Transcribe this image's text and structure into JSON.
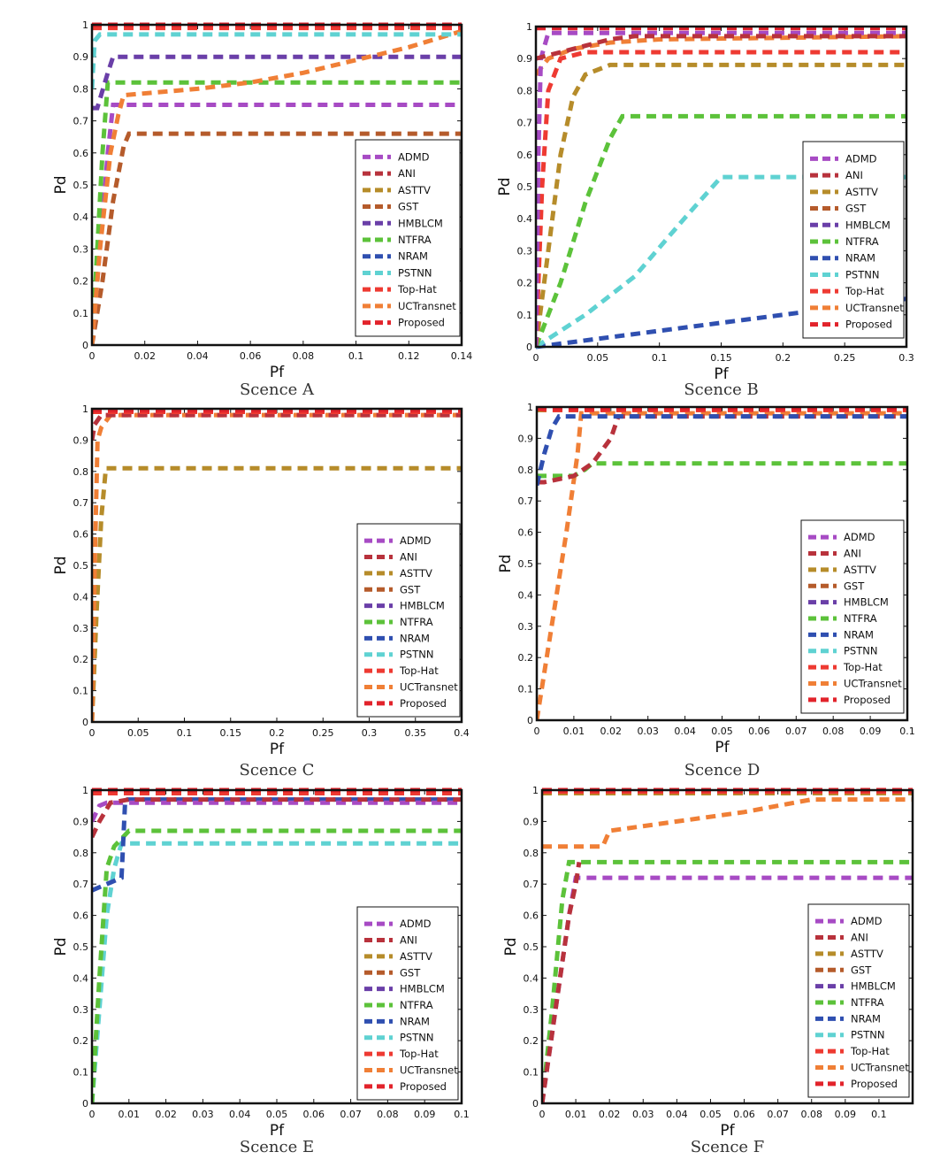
{
  "chart_data": [
    {
      "type": "line",
      "caption": "Scence A",
      "xlabel": "Pf",
      "ylabel": "Pd",
      "xlim": [
        0,
        0.14
      ],
      "ylim": [
        0,
        1
      ],
      "xticks": [
        "0",
        "0.02",
        "0.04",
        "0.06",
        "0.08",
        "0.1",
        "0.12",
        "0.14"
      ],
      "yticks": [
        "0",
        "0.1",
        "0.2",
        "0.3",
        "0.4",
        "0.5",
        "0.6",
        "0.7",
        "0.8",
        "0.9",
        "1"
      ],
      "legend": [
        "ADMD",
        "ANI",
        "ASTTV",
        "GST",
        "HMBLCM",
        "NTFRA",
        "NRAM",
        "PSTNN",
        "Top-Hat",
        "UCTransnet",
        "Proposed"
      ],
      "series": [
        {
          "name": "GST",
          "x": [
            0,
            0.004,
            0.008,
            0.012,
            0.014,
            0.14
          ],
          "y": [
            0,
            0.2,
            0.45,
            0.62,
            0.66,
            0.66
          ]
        },
        {
          "name": "ADMD",
          "x": [
            0,
            0.003,
            0.006,
            0.008,
            0.14
          ],
          "y": [
            0,
            0.3,
            0.6,
            0.75,
            0.75
          ]
        },
        {
          "name": "NTFRA",
          "x": [
            0,
            0.002,
            0.004,
            0.006,
            0.14
          ],
          "y": [
            0,
            0.3,
            0.6,
            0.82,
            0.82
          ]
        },
        {
          "name": "HMBLCM",
          "x": [
            0,
            0.002,
            0.006,
            0.008,
            0.14
          ],
          "y": [
            0.74,
            0.74,
            0.85,
            0.9,
            0.9
          ]
        },
        {
          "name": "UCTransnet",
          "x": [
            0,
            0.003,
            0.007,
            0.01,
            0.012,
            0.04,
            0.06,
            0.08,
            0.1,
            0.12,
            0.14
          ],
          "y": [
            0,
            0.3,
            0.6,
            0.72,
            0.78,
            0.8,
            0.82,
            0.85,
            0.89,
            0.93,
            0.98
          ]
        },
        {
          "name": "PSTNN",
          "x": [
            0,
            0.001,
            0.003,
            0.14
          ],
          "y": [
            0.8,
            0.95,
            0.97,
            0.97
          ]
        },
        {
          "name": "Top-Hat",
          "x": [
            0,
            0.002,
            0.14
          ],
          "y": [
            0.99,
            0.99,
            0.99
          ]
        },
        {
          "name": "Proposed",
          "x": [
            0,
            0.001,
            0.14
          ],
          "y": [
            1,
            1,
            1
          ]
        }
      ]
    },
    {
      "type": "line",
      "caption": "Scence B",
      "xlabel": "Pf",
      "ylabel": "Pd",
      "xlim": [
        0,
        0.3
      ],
      "ylim": [
        0,
        1
      ],
      "xticks": [
        "0",
        "0.05",
        "0.1",
        "0.15",
        "0.2",
        "0.25",
        "0.3"
      ],
      "yticks": [
        "0",
        "0.1",
        "0.2",
        "0.3",
        "0.4",
        "0.5",
        "0.6",
        "0.7",
        "0.8",
        "0.9",
        "1"
      ],
      "legend": [
        "ADMD",
        "ANI",
        "ASTTV",
        "GST",
        "HMBLCM",
        "NTFRA",
        "NRAM",
        "PSTNN",
        "Top-Hat",
        "UCTransnet",
        "Proposed"
      ],
      "series": [
        {
          "name": "NRAM",
          "x": [
            0,
            0.3
          ],
          "y": [
            0,
            0.15
          ]
        },
        {
          "name": "PSTNN",
          "x": [
            0,
            0.04,
            0.08,
            0.12,
            0.15,
            0.3
          ],
          "y": [
            0,
            0.1,
            0.22,
            0.4,
            0.53,
            0.53
          ]
        },
        {
          "name": "NTFRA",
          "x": [
            0,
            0.02,
            0.04,
            0.06,
            0.07,
            0.3
          ],
          "y": [
            0,
            0.2,
            0.45,
            0.65,
            0.72,
            0.72
          ]
        },
        {
          "name": "ASTTV",
          "x": [
            0,
            0.01,
            0.02,
            0.03,
            0.04,
            0.06,
            0.3
          ],
          "y": [
            0,
            0.3,
            0.6,
            0.78,
            0.85,
            0.88,
            0.88
          ]
        },
        {
          "name": "Top-Hat",
          "x": [
            0,
            0.005,
            0.01,
            0.02,
            0.04,
            0.3
          ],
          "y": [
            0,
            0.5,
            0.8,
            0.9,
            0.92,
            0.92
          ]
        },
        {
          "name": "UCTransnet",
          "x": [
            0,
            0.01,
            0.03,
            0.06,
            0.1,
            0.3
          ],
          "y": [
            0.85,
            0.9,
            0.93,
            0.95,
            0.96,
            0.97
          ]
        },
        {
          "name": "ADMD",
          "x": [
            0,
            0.002,
            0.004,
            0.01,
            0.3
          ],
          "y": [
            0,
            0.6,
            0.9,
            0.98,
            0.98
          ]
        },
        {
          "name": "ANI",
          "x": [
            0,
            0.02,
            0.04,
            0.06,
            0.08,
            0.1,
            0.3
          ],
          "y": [
            0.9,
            0.92,
            0.94,
            0.96,
            0.97,
            0.97,
            0.97
          ]
        },
        {
          "name": "Proposed",
          "x": [
            0,
            0.001,
            0.3
          ],
          "y": [
            0.995,
            0.995,
            0.995
          ]
        }
      ]
    },
    {
      "type": "line",
      "caption": "Scence C",
      "xlabel": "Pf",
      "ylabel": "Pd",
      "xlim": [
        0,
        0.4
      ],
      "ylim": [
        0,
        1
      ],
      "xticks": [
        "0",
        "0.05",
        "0.1",
        "0.15",
        "0.2",
        "0.25",
        "0.3",
        "0.35",
        "0.4"
      ],
      "yticks": [
        "0",
        "0.1",
        "0.2",
        "0.3",
        "0.4",
        "0.5",
        "0.6",
        "0.7",
        "0.8",
        "0.9",
        "1"
      ],
      "legend": [
        "ADMD",
        "ANI",
        "ASTTV",
        "GST",
        "HMBLCM",
        "NTFRA",
        "NRAM",
        "PSTNN",
        "Top-Hat",
        "UCTransnet",
        "Proposed"
      ],
      "series": [
        {
          "name": "ASTTV",
          "x": [
            0,
            0.005,
            0.01,
            0.015,
            0.4
          ],
          "y": [
            0,
            0.35,
            0.65,
            0.81,
            0.81
          ]
        },
        {
          "name": "UCTransnet",
          "x": [
            0,
            0.003,
            0.006,
            0.01,
            0.02,
            0.4
          ],
          "y": [
            0,
            0.5,
            0.9,
            0.94,
            0.98,
            0.98
          ]
        },
        {
          "name": "ANI",
          "x": [
            0,
            0.003,
            0.01,
            0.4
          ],
          "y": [
            0.9,
            0.95,
            0.98,
            0.98
          ]
        },
        {
          "name": "Top-Hat",
          "x": [
            0,
            0.003,
            0.4
          ],
          "y": [
            0.99,
            0.99,
            0.99
          ]
        },
        {
          "name": "Proposed",
          "x": [
            0,
            0.002,
            0.4
          ],
          "y": [
            0.995,
            0.995,
            0.995
          ]
        }
      ]
    },
    {
      "type": "line",
      "caption": "Scence D",
      "xlabel": "Pf",
      "ylabel": "Pd",
      "xlim": [
        0,
        0.1
      ],
      "ylim": [
        0,
        1
      ],
      "xticks": [
        "0",
        "0.01",
        "0.02",
        "0.03",
        "0.04",
        "0.05",
        "0.06",
        "0.07",
        "0.08",
        "0.09",
        "0.1"
      ],
      "yticks": [
        "0",
        "0.1",
        "0.2",
        "0.3",
        "0.4",
        "0.5",
        "0.6",
        "0.7",
        "0.8",
        "0.9",
        "1"
      ],
      "legend": [
        "ADMD",
        "ANI",
        "ASTTV",
        "GST",
        "HMBLCM",
        "NTFRA",
        "NRAM",
        "PSTNN",
        "Top-Hat",
        "UCTransnet",
        "Proposed"
      ],
      "series": [
        {
          "name": "UCTransnet",
          "x": [
            0,
            0.004,
            0.008,
            0.011,
            0.012,
            0.1
          ],
          "y": [
            0,
            0.3,
            0.6,
            0.85,
            0.98,
            0.98
          ]
        },
        {
          "name": "NTFRA",
          "x": [
            0,
            0.01,
            0.013,
            0.015,
            0.1
          ],
          "y": [
            0.78,
            0.78,
            0.8,
            0.82,
            0.82
          ]
        },
        {
          "name": "ANI",
          "x": [
            0,
            0.002,
            0.01,
            0.015,
            0.02,
            0.022,
            0.1
          ],
          "y": [
            0.76,
            0.76,
            0.78,
            0.82,
            0.9,
            0.97,
            0.97
          ]
        },
        {
          "name": "NRAM",
          "x": [
            0,
            0.002,
            0.004,
            0.006,
            0.1
          ],
          "y": [
            0.75,
            0.85,
            0.93,
            0.97,
            0.97
          ]
        },
        {
          "name": "ASTTV",
          "x": [
            0,
            0.1
          ],
          "y": [
            0.99,
            0.99
          ]
        },
        {
          "name": "Top-Hat",
          "x": [
            0,
            0.003,
            0.1
          ],
          "y": [
            0.995,
            0.99,
            0.99
          ]
        },
        {
          "name": "Proposed",
          "x": [
            0,
            0.001,
            0.1
          ],
          "y": [
            0.995,
            0.995,
            0.995
          ]
        }
      ]
    },
    {
      "type": "line",
      "caption": "Scence E",
      "xlabel": "Pf",
      "ylabel": "Pd",
      "xlim": [
        0,
        0.1
      ],
      "ylim": [
        0,
        1
      ],
      "xticks": [
        "0",
        "0.01",
        "0.02",
        "0.03",
        "0.04",
        "0.05",
        "0.06",
        "0.07",
        "0.08",
        "0.09",
        "0.1"
      ],
      "yticks": [
        "0",
        "0.1",
        "0.2",
        "0.3",
        "0.4",
        "0.5",
        "0.6",
        "0.7",
        "0.8",
        "0.9",
        "1"
      ],
      "legend": [
        "ADMD",
        "ANI",
        "ASTTV",
        "GST",
        "HMBLCM",
        "NTFRA",
        "NRAM",
        "PSTNN",
        "Top-Hat",
        "UCTransnet",
        "Proposed"
      ],
      "series": [
        {
          "name": "PSTNN",
          "x": [
            0,
            0.002,
            0.004,
            0.006,
            0.008,
            0.1
          ],
          "y": [
            0,
            0.3,
            0.6,
            0.75,
            0.83,
            0.83
          ]
        },
        {
          "name": "NTFRA",
          "x": [
            0,
            0.002,
            0.004,
            0.006,
            0.01,
            0.1
          ],
          "y": [
            0,
            0.4,
            0.75,
            0.82,
            0.87,
            0.87
          ]
        },
        {
          "name": "NRAM",
          "x": [
            0,
            0.004,
            0.008,
            0.009,
            0.1
          ],
          "y": [
            0.68,
            0.7,
            0.72,
            0.97,
            0.97
          ]
        },
        {
          "name": "ADMD",
          "x": [
            0,
            0.002,
            0.004,
            0.1
          ],
          "y": [
            0.9,
            0.95,
            0.96,
            0.96
          ]
        },
        {
          "name": "ANI",
          "x": [
            0,
            0.002,
            0.005,
            0.01,
            0.1
          ],
          "y": [
            0.85,
            0.9,
            0.96,
            0.97,
            0.97
          ]
        },
        {
          "name": "Top-Hat",
          "x": [
            0,
            0.1
          ],
          "y": [
            0.99,
            0.99
          ]
        },
        {
          "name": "Proposed",
          "x": [
            0,
            0.1
          ],
          "y": [
            1,
            1
          ]
        }
      ]
    },
    {
      "type": "line",
      "caption": "Scence F",
      "xlabel": "Pf",
      "ylabel": "Pd",
      "xlim": [
        0,
        0.11
      ],
      "ylim": [
        0,
        1
      ],
      "xticks": [
        "0",
        "0.01",
        "0.02",
        "0.03",
        "0.04",
        "0.05",
        "0.06",
        "0.07",
        "0.08",
        "0.09",
        "0.1"
      ],
      "yticks": [
        "0",
        "0.1",
        "0.2",
        "0.3",
        "0.4",
        "0.5",
        "0.6",
        "0.7",
        "0.8",
        "0.9",
        "1"
      ],
      "legend": [
        "ADMD",
        "ANI",
        "ASTTV",
        "GST",
        "HMBLCM",
        "NTFRA",
        "NRAM",
        "PSTNN",
        "Top-Hat",
        "UCTransnet",
        "Proposed"
      ],
      "series": [
        {
          "name": "NTFRA",
          "x": [
            0,
            0.003,
            0.006,
            0.008,
            0.11
          ],
          "y": [
            0,
            0.3,
            0.65,
            0.77,
            0.77
          ]
        },
        {
          "name": "ADMD",
          "x": [
            0,
            0.004,
            0.008,
            0.01,
            0.11
          ],
          "y": [
            0,
            0.3,
            0.6,
            0.72,
            0.72
          ]
        },
        {
          "name": "ANI",
          "x": [
            0,
            0.004,
            0.008,
            0.01,
            0.011
          ],
          "y": [
            0,
            0.3,
            0.6,
            0.7,
            0.77
          ]
        },
        {
          "name": "UCTransnet",
          "x": [
            0,
            0.018,
            0.02,
            0.04,
            0.06,
            0.08,
            0.11
          ],
          "y": [
            0.82,
            0.82,
            0.87,
            0.9,
            0.93,
            0.97,
            0.97
          ]
        },
        {
          "name": "ASTTV",
          "x": [
            0,
            0.11
          ],
          "y": [
            0.99,
            0.99
          ]
        },
        {
          "name": "Top-Hat",
          "x": [
            0,
            0.11
          ],
          "y": [
            0.995,
            0.995
          ]
        },
        {
          "name": "Proposed",
          "x": [
            0,
            0.11
          ],
          "y": [
            1,
            1
          ]
        }
      ]
    }
  ],
  "colors": {
    "ADMD": "#a74bc4",
    "ANI": "#b8323c",
    "ASTTV": "#b68c2a",
    "GST": "#b55b2b",
    "HMBLCM": "#6a3fa8",
    "NTFRA": "#5cc23a",
    "NRAM": "#2f4fb0",
    "PSTNN": "#5fd2d2",
    "Top-Hat": "#ee3a32",
    "UCTransnet": "#f07f36",
    "Proposed": "#e2232b",
    "axis": "#111111"
  }
}
